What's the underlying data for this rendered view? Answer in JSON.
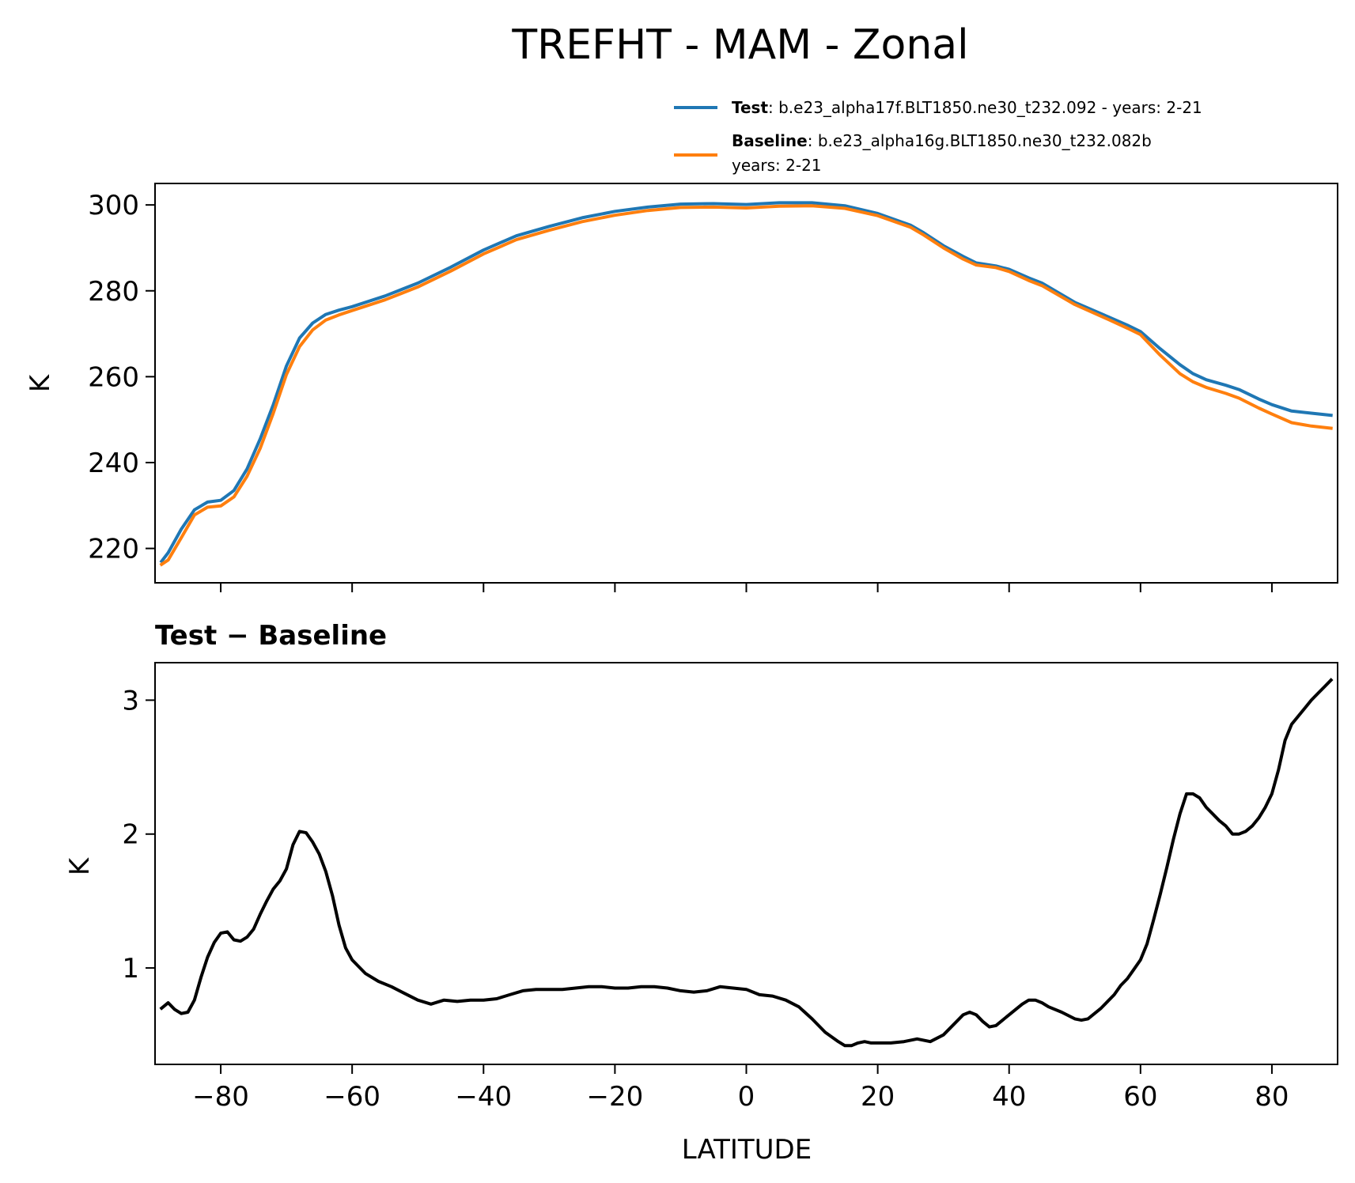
{
  "chart_data": [
    {
      "type": "line",
      "title": "TREFHT - MAM - Zonal",
      "xlabel": "",
      "ylabel": "K",
      "xlim": [
        -90,
        90
      ],
      "ylim": [
        212,
        305
      ],
      "xticks": [
        -80,
        -60,
        -40,
        -20,
        0,
        20,
        40,
        60,
        80
      ],
      "yticks": [
        220,
        240,
        260,
        280,
        300
      ],
      "ytick_labels": [
        "220",
        "240",
        "260",
        "280",
        "300"
      ],
      "legend": [
        {
          "name_bold": "Test",
          "text": ": b.e23_alpha17f.BLT1850.ne30_t232.092 - years: 2-21",
          "text_line2": "",
          "color": "#1f77b4"
        },
        {
          "name_bold": "Baseline",
          "text": ": b.e23_alpha16g.BLT1850.ne30_t232.082b",
          "text_line2": "years: 2-21",
          "color": "#ff7f0e"
        }
      ],
      "series": [
        {
          "name": "Test",
          "color": "#1f77b4",
          "x": [
            -89,
            -88,
            -86,
            -84,
            -82,
            -80,
            -78,
            -76,
            -74,
            -72,
            -70,
            -68,
            -66,
            -64,
            -62,
            -60,
            -55,
            -50,
            -45,
            -40,
            -35,
            -30,
            -25,
            -20,
            -15,
            -10,
            -5,
            0,
            5,
            10,
            15,
            20,
            25,
            27,
            30,
            33,
            35,
            38,
            40,
            43,
            45,
            50,
            55,
            58,
            60,
            63,
            66,
            68,
            70,
            73,
            75,
            78,
            80,
            83,
            86,
            89
          ],
          "values": [
            217,
            219,
            224.5,
            229,
            230.8,
            231.2,
            233.5,
            238.5,
            245.5,
            253.5,
            262.5,
            269,
            272.5,
            274.5,
            275.5,
            276.3,
            278.8,
            281.8,
            285.5,
            289.5,
            292.8,
            295,
            297,
            298.5,
            299.5,
            300.2,
            300.3,
            300.1,
            300.5,
            300.5,
            299.8,
            298,
            295.3,
            293.5,
            290.5,
            288,
            286.5,
            285.8,
            285,
            283,
            281.8,
            277.3,
            274,
            272,
            270.5,
            266.5,
            262.8,
            260.7,
            259.3,
            258,
            257,
            254.8,
            253.5,
            252,
            251.5,
            251
          ]
        },
        {
          "name": "Baseline",
          "color": "#ff7f0e",
          "x": [
            -89,
            -88,
            -86,
            -84,
            -82,
            -80,
            -78,
            -76,
            -74,
            -72,
            -70,
            -68,
            -66,
            -64,
            -62,
            -60,
            -55,
            -50,
            -45,
            -40,
            -35,
            -30,
            -25,
            -20,
            -15,
            -10,
            -5,
            0,
            5,
            10,
            15,
            20,
            25,
            27,
            30,
            33,
            35,
            38,
            40,
            43,
            45,
            50,
            55,
            58,
            60,
            63,
            66,
            68,
            70,
            73,
            75,
            78,
            80,
            83,
            86,
            89
          ],
          "values": [
            216.3,
            217.3,
            222.5,
            227.8,
            229.6,
            229.9,
            232,
            236.8,
            243.3,
            251.5,
            260.5,
            267,
            270.9,
            273.2,
            274.4,
            275.4,
            277.9,
            280.9,
            284.6,
            288.6,
            291.9,
            294.1,
            296.1,
            297.6,
            298.7,
            299.4,
            299.5,
            299.3,
            299.7,
            299.8,
            299.2,
            297.5,
            294.8,
            293,
            290,
            287.4,
            286,
            285.4,
            284.5,
            282.4,
            281.2,
            276.8,
            273.4,
            271.3,
            269.8,
            265,
            260.7,
            258.8,
            257.5,
            256.1,
            255,
            252.7,
            251.3,
            249.3,
            248.5,
            248
          ]
        }
      ]
    },
    {
      "type": "line",
      "title": "Test − Baseline",
      "xlabel": "LATITUDE",
      "ylabel": "K",
      "xlim": [
        -90,
        90
      ],
      "ylim": [
        0.28,
        3.28
      ],
      "xticks": [
        -80,
        -60,
        -40,
        -20,
        0,
        20,
        40,
        60,
        80
      ],
      "xtick_labels": [
        "−80",
        "−60",
        "−40",
        "−20",
        "0",
        "20",
        "40",
        "60",
        "80"
      ],
      "yticks": [
        1,
        2,
        3
      ],
      "ytick_labels": [
        "1",
        "2",
        "3"
      ],
      "series": [
        {
          "name": "Test − Baseline",
          "color": "#000000",
          "x": [
            -89,
            -88,
            -87,
            -86,
            -85,
            -84,
            -83,
            -82,
            -81,
            -80,
            -79,
            -78,
            -77,
            -76,
            -75,
            -74,
            -73,
            -72,
            -71,
            -70,
            -69,
            -68,
            -67,
            -66,
            -65,
            -64,
            -63,
            -62,
            -61,
            -60,
            -58,
            -56,
            -54,
            -52,
            -50,
            -48,
            -46,
            -44,
            -42,
            -40,
            -38,
            -36,
            -34,
            -32,
            -30,
            -28,
            -26,
            -24,
            -22,
            -20,
            -18,
            -16,
            -14,
            -12,
            -10,
            -8,
            -6,
            -4,
            -2,
            0,
            2,
            4,
            6,
            8,
            10,
            12,
            14,
            15,
            16,
            17,
            18,
            19,
            20,
            22,
            24,
            26,
            28,
            30,
            32,
            33,
            34,
            35,
            36,
            37,
            38,
            40,
            42,
            43,
            44,
            45,
            46,
            48,
            50,
            51,
            52,
            54,
            56,
            57,
            58,
            59,
            60,
            61,
            62,
            63,
            64,
            65,
            66,
            67,
            68,
            69,
            70,
            71,
            72,
            73,
            74,
            75,
            76,
            77,
            78,
            79,
            80,
            81,
            82,
            83,
            84,
            85,
            86,
            87,
            88,
            89
          ],
          "values": [
            0.7,
            0.74,
            0.69,
            0.66,
            0.67,
            0.76,
            0.93,
            1.08,
            1.19,
            1.26,
            1.27,
            1.21,
            1.2,
            1.23,
            1.29,
            1.4,
            1.5,
            1.59,
            1.65,
            1.74,
            1.92,
            2.02,
            2.01,
            1.94,
            1.85,
            1.72,
            1.54,
            1.32,
            1.15,
            1.06,
            0.96,
            0.9,
            0.86,
            0.81,
            0.76,
            0.73,
            0.76,
            0.75,
            0.76,
            0.76,
            0.77,
            0.8,
            0.83,
            0.84,
            0.84,
            0.84,
            0.85,
            0.86,
            0.86,
            0.85,
            0.85,
            0.86,
            0.86,
            0.85,
            0.83,
            0.82,
            0.83,
            0.86,
            0.85,
            0.84,
            0.8,
            0.79,
            0.76,
            0.71,
            0.62,
            0.52,
            0.45,
            0.42,
            0.42,
            0.44,
            0.45,
            0.44,
            0.44,
            0.44,
            0.45,
            0.47,
            0.45,
            0.5,
            0.6,
            0.65,
            0.67,
            0.65,
            0.6,
            0.56,
            0.57,
            0.65,
            0.73,
            0.76,
            0.76,
            0.74,
            0.71,
            0.67,
            0.62,
            0.61,
            0.62,
            0.7,
            0.8,
            0.87,
            0.92,
            0.99,
            1.06,
            1.18,
            1.36,
            1.55,
            1.75,
            1.96,
            2.15,
            2.3,
            2.3,
            2.27,
            2.2,
            2.15,
            2.1,
            2.06,
            2.0,
            2.0,
            2.02,
            2.06,
            2.12,
            2.2,
            2.3,
            2.48,
            2.7,
            2.82,
            2.88,
            2.94,
            3.0,
            3.05,
            3.1,
            3.15
          ]
        }
      ]
    }
  ]
}
